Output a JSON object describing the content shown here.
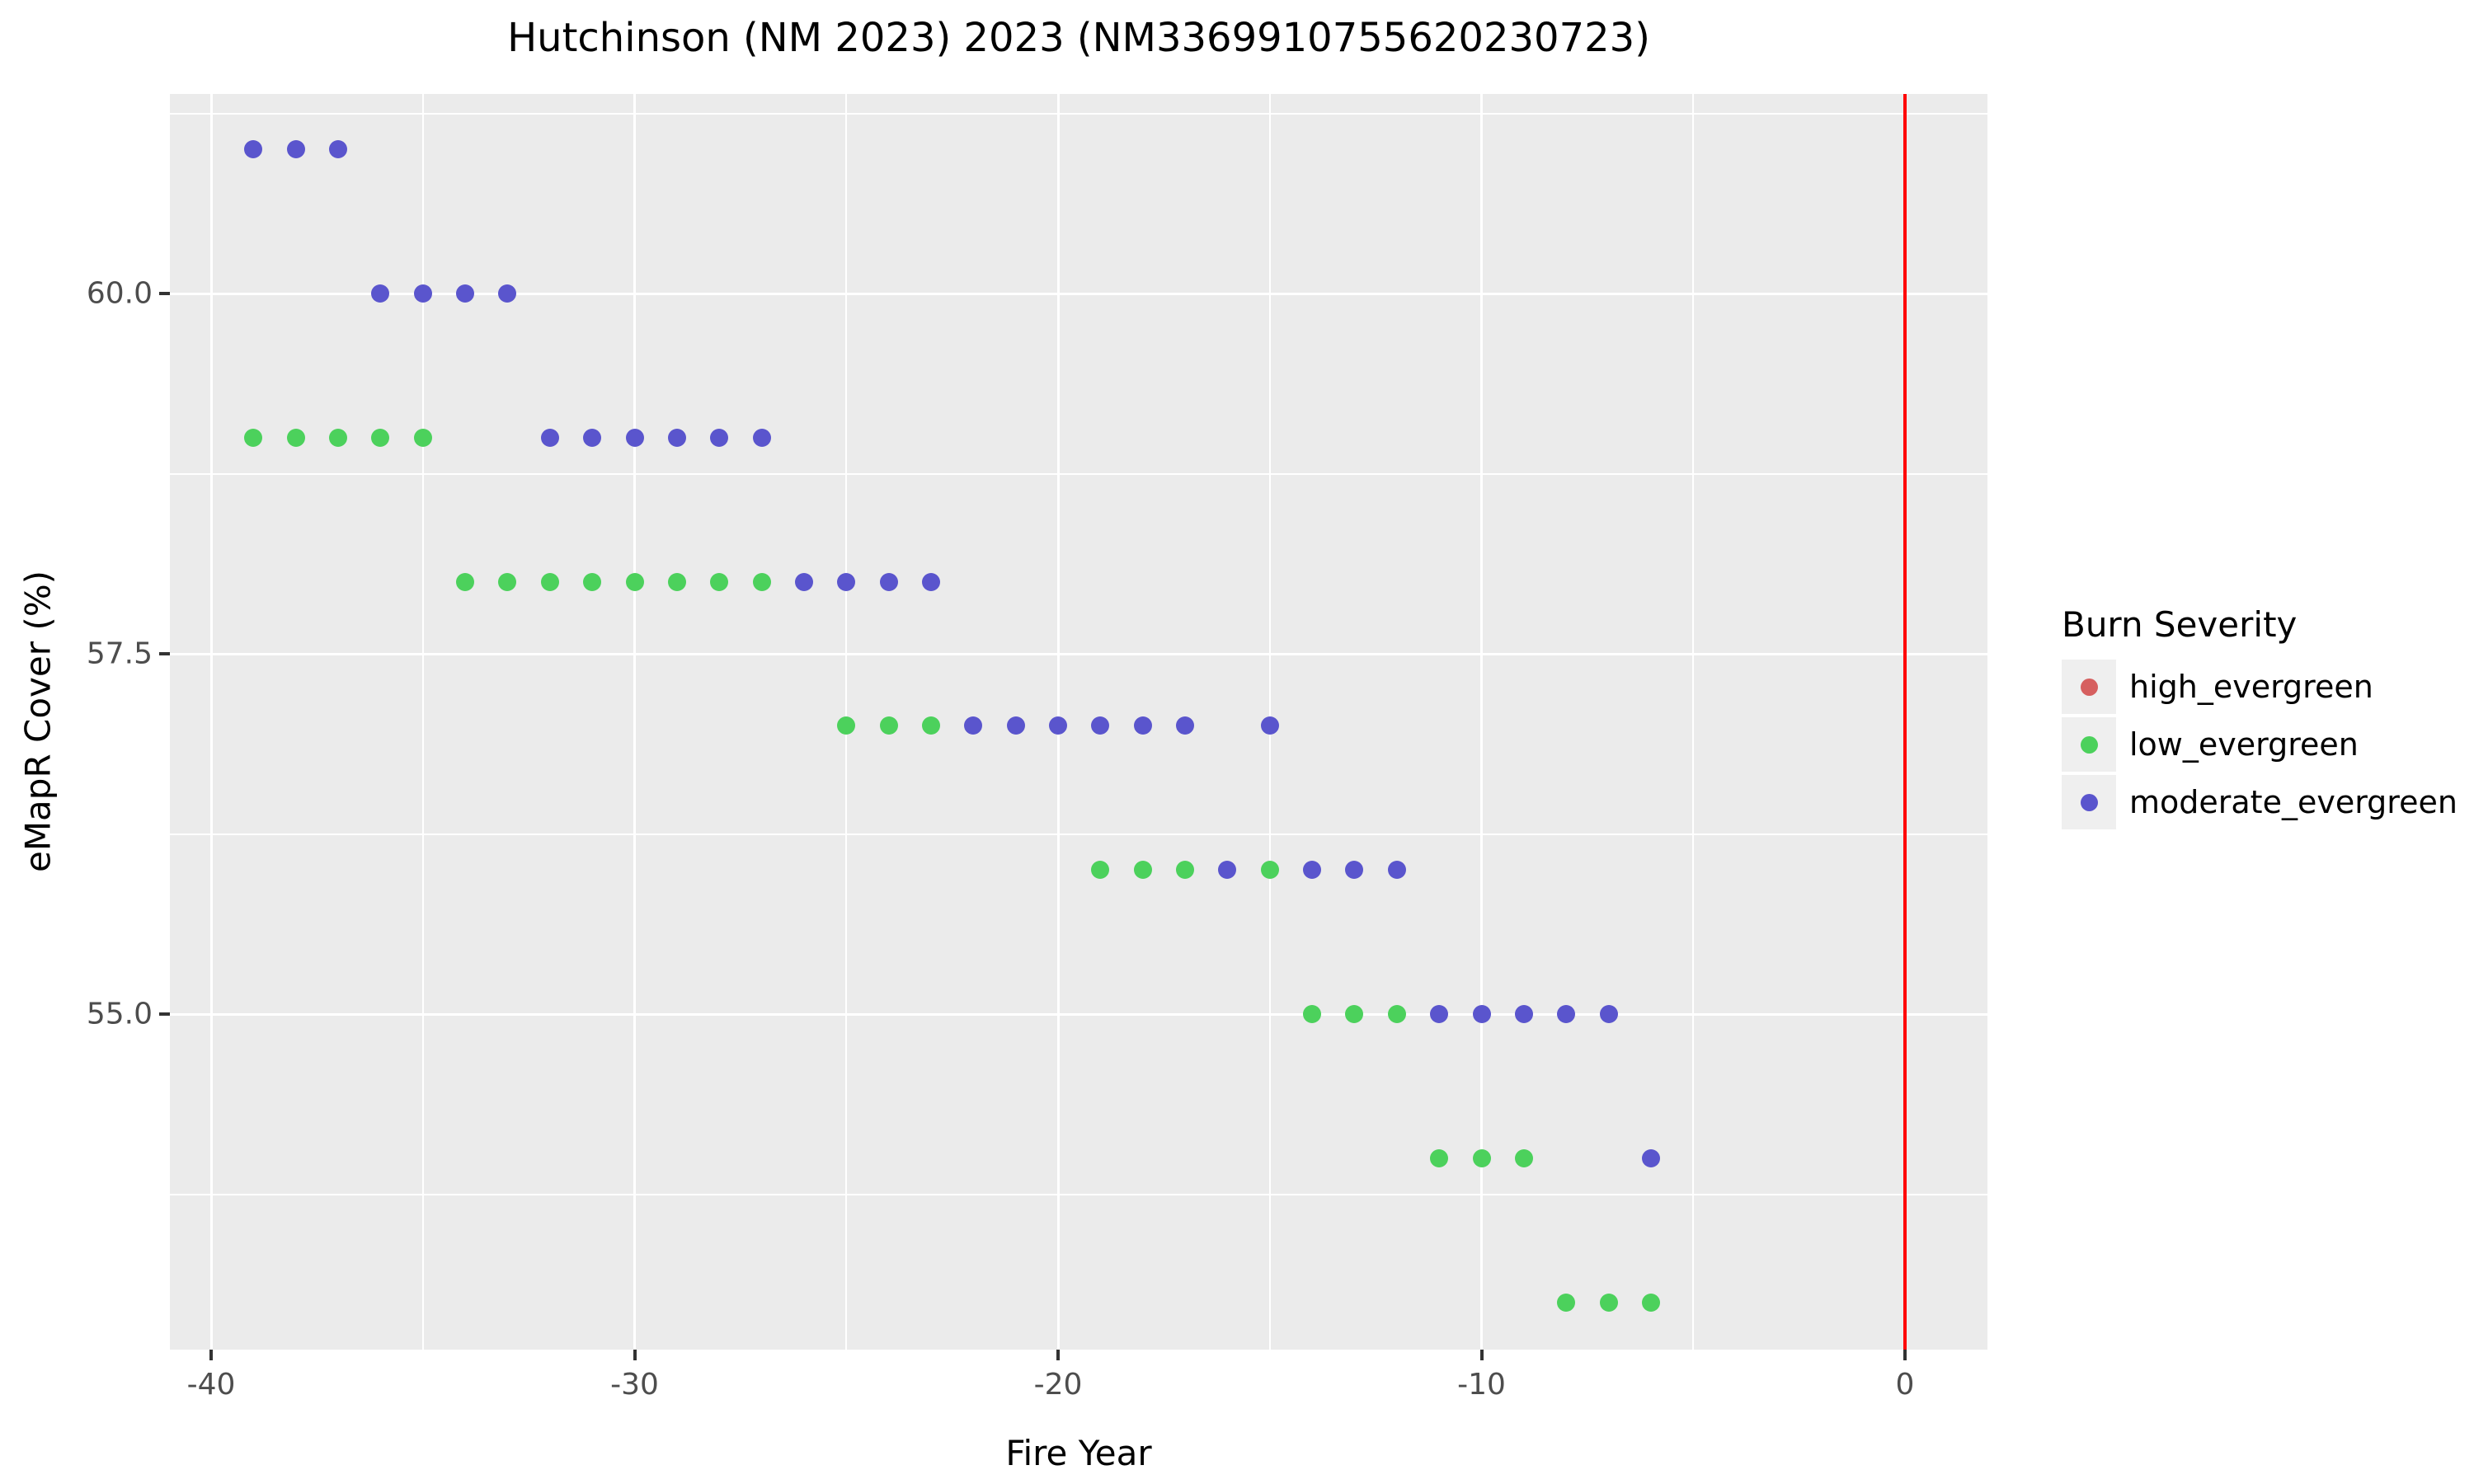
{
  "title": "Hutchinson (NM 2023) 2023 (NM3369910755620230723)",
  "axes": {
    "x_label": "Fire Year",
    "y_label": "eMapR Cover (%)"
  },
  "legend": {
    "title": "Burn Severity",
    "items": [
      {
        "label": "high_evergreen",
        "color": "#D65F5F"
      },
      {
        "label": "low_evergreen",
        "color": "#4CD15C"
      },
      {
        "label": "moderate_evergreen",
        "color": "#5A55CD"
      }
    ]
  },
  "colors": {
    "panel_background": "#EBEBEB",
    "gridline": "#FFFFFF",
    "vline": "#FF0000",
    "tick": "#333333",
    "tick_label": "#4D4D4D",
    "legend_key_background": "#EFEFEF"
  },
  "chart_data": {
    "type": "scatter",
    "title": "Hutchinson (NM 2023) 2023 (NM3369910755620230723)",
    "xlabel": "Fire Year",
    "ylabel": "eMapR Cover (%)",
    "xlim": [
      -40.97,
      1.95
    ],
    "ylim": [
      52.67,
      61.38
    ],
    "grid": true,
    "legend_position": "right",
    "x_major_ticks": [
      -40,
      -30,
      -20,
      -10,
      0
    ],
    "x_tick_labels": [
      "-40",
      "-30",
      "-20",
      "-10",
      "0"
    ],
    "x_minor_gridlines": [
      -35,
      -25,
      -15,
      -5
    ],
    "y_major_ticks": [
      55.0,
      57.5,
      60.0
    ],
    "y_tick_labels": [
      "55.0",
      "57.5",
      "60.0"
    ],
    "y_minor_gridlines": [
      53.75,
      56.25,
      58.75,
      61.25
    ],
    "vline": {
      "x": 0,
      "color": "#FF0000"
    },
    "series": [
      {
        "name": "high_evergreen",
        "color": "#D65F5F",
        "points": []
      },
      {
        "name": "low_evergreen",
        "color": "#4CD15C",
        "points": [
          [
            -39,
            59
          ],
          [
            -38,
            59
          ],
          [
            -37,
            59
          ],
          [
            -36,
            59
          ],
          [
            -35,
            59
          ],
          [
            -34,
            58
          ],
          [
            -33,
            58
          ],
          [
            -32,
            58
          ],
          [
            -31,
            58
          ],
          [
            -30,
            58
          ],
          [
            -29,
            58
          ],
          [
            -28,
            58
          ],
          [
            -27,
            58
          ],
          [
            -25,
            57
          ],
          [
            -24,
            57
          ],
          [
            -23,
            57
          ],
          [
            -19,
            56
          ],
          [
            -18,
            56
          ],
          [
            -17,
            56
          ],
          [
            -15,
            56
          ],
          [
            -14,
            55
          ],
          [
            -13,
            55
          ],
          [
            -12,
            55
          ],
          [
            -11,
            54
          ],
          [
            -10,
            54
          ],
          [
            -9,
            54
          ],
          [
            -8,
            53
          ],
          [
            -7,
            53
          ],
          [
            -6,
            53
          ]
        ]
      },
      {
        "name": "moderate_evergreen",
        "color": "#5A55CD",
        "points": [
          [
            -39,
            61
          ],
          [
            -38,
            61
          ],
          [
            -37,
            61
          ],
          [
            -36,
            60
          ],
          [
            -35,
            60
          ],
          [
            -34,
            60
          ],
          [
            -33,
            60
          ],
          [
            -32,
            59
          ],
          [
            -31,
            59
          ],
          [
            -30,
            59
          ],
          [
            -29,
            59
          ],
          [
            -28,
            59
          ],
          [
            -27,
            59
          ],
          [
            -26,
            58
          ],
          [
            -25,
            58
          ],
          [
            -24,
            58
          ],
          [
            -23,
            58
          ],
          [
            -22,
            57
          ],
          [
            -21,
            57
          ],
          [
            -20,
            57
          ],
          [
            -19,
            57
          ],
          [
            -18,
            57
          ],
          [
            -17,
            57
          ],
          [
            -15,
            57
          ],
          [
            -16,
            56
          ],
          [
            -14,
            56
          ],
          [
            -13,
            56
          ],
          [
            -12,
            56
          ],
          [
            -11,
            55
          ],
          [
            -10,
            55
          ],
          [
            -9,
            55
          ],
          [
            -8,
            55
          ],
          [
            -7,
            55
          ],
          [
            -6,
            54
          ]
        ]
      }
    ]
  }
}
